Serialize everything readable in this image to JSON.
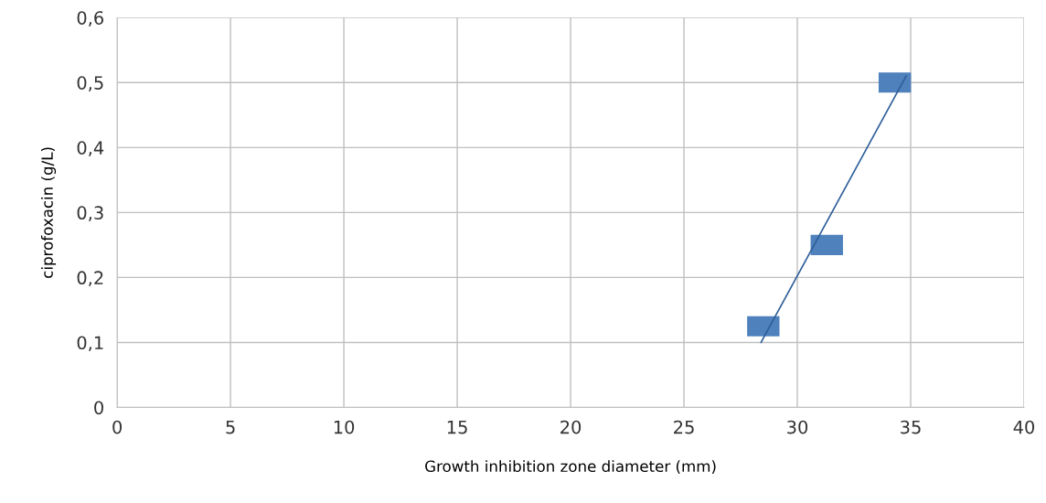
{
  "chart_data": {
    "type": "scatter",
    "xlabel": "Growth inhibition zone diameter (mm)",
    "ylabel": "ciprofoxacin (g/L)",
    "series": [
      {
        "color": "#4f81bd",
        "x": [
          28.5,
          31.3,
          34.3
        ],
        "values": [
          0.125,
          0.25,
          0.5
        ],
        "marker": "square"
      },
      {
        "type": "line",
        "color": "#2e5f9a",
        "x": [
          28.4,
          34.8
        ],
        "values": [
          0.1,
          0.51
        ],
        "marker": "none",
        "line_style": "solid"
      }
    ],
    "xlim": [
      0,
      40
    ],
    "xticks": [
      0,
      5,
      10,
      15,
      20,
      25,
      30,
      35,
      40
    ],
    "ylim": [
      0,
      0.6
    ],
    "yticks": [
      0,
      {
        "value": 0.1,
        "label": "0,1"
      },
      {
        "value": 0.2,
        "label": "0,2"
      },
      {
        "value": 0.3,
        "label": "0,3"
      },
      {
        "value": 0.4,
        "label": "0,4"
      },
      {
        "value": 0.5,
        "label": "0,5"
      },
      {
        "value": 0.6,
        "label": "0,6"
      }
    ],
    "grid": true
  }
}
